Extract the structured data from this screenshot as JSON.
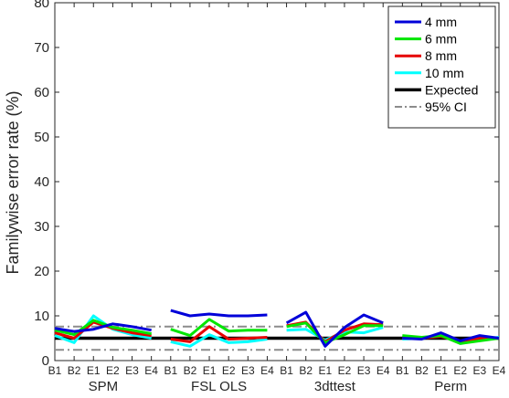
{
  "chart_data": {
    "type": "line",
    "xlabel": "",
    "ylabel": "Familywise error rate (%)",
    "ylim": [
      0,
      80
    ],
    "yticks": [
      0,
      10,
      20,
      30,
      40,
      50,
      60,
      70,
      80
    ],
    "grid": false,
    "legend_position": "top-right",
    "groups": [
      {
        "name": "SPM",
        "categories": [
          "B1",
          "B2",
          "E1",
          "E2",
          "E3",
          "E4"
        ]
      },
      {
        "name": "FSL OLS",
        "categories": [
          "B1",
          "B2",
          "E1",
          "E2",
          "E3",
          "E4"
        ]
      },
      {
        "name": "3dttest",
        "categories": [
          "B1",
          "B2",
          "E1",
          "E2",
          "E3",
          "E4"
        ]
      },
      {
        "name": "Perm",
        "categories": [
          "B1",
          "B2",
          "E1",
          "E2",
          "E3",
          "E4"
        ]
      }
    ],
    "series": [
      {
        "name": "4 mm",
        "color": "#0000d9",
        "style": "solid",
        "groups": [
          [
            7.2,
            6.5,
            7.0,
            8.2,
            7.6,
            6.8
          ],
          [
            11.2,
            10.0,
            10.4,
            10.0,
            10.0,
            10.2
          ],
          [
            8.4,
            10.8,
            3.2,
            7.4,
            10.2,
            8.4
          ],
          [
            5.0,
            4.8,
            6.2,
            4.4,
            5.6,
            5.0
          ]
        ]
      },
      {
        "name": "6 mm",
        "color": "#00e600",
        "style": "solid",
        "groups": [
          [
            6.8,
            5.8,
            9.0,
            7.4,
            6.8,
            6.0
          ],
          [
            7.0,
            5.6,
            9.2,
            6.6,
            6.8,
            6.8
          ],
          [
            7.6,
            8.4,
            4.0,
            5.8,
            7.8,
            7.8
          ],
          [
            5.6,
            5.2,
            5.6,
            3.8,
            4.4,
            5.0
          ]
        ]
      },
      {
        "name": "8 mm",
        "color": "#e60000",
        "style": "solid",
        "groups": [
          [
            6.2,
            5.0,
            8.6,
            7.2,
            6.2,
            5.6
          ],
          [
            4.8,
            4.2,
            7.6,
            4.8,
            5.0,
            5.2
          ],
          [
            7.8,
            8.6,
            4.2,
            6.8,
            8.2,
            8.0
          ],
          [
            5.2,
            5.0,
            5.4,
            4.2,
            5.0,
            5.0
          ]
        ]
      },
      {
        "name": "10 mm",
        "color": "#00ffff",
        "style": "solid",
        "groups": [
          [
            5.6,
            4.0,
            10.0,
            7.0,
            5.8,
            5.0
          ],
          [
            4.2,
            3.2,
            5.8,
            4.0,
            4.2,
            4.8
          ],
          [
            6.8,
            7.0,
            4.6,
            6.4,
            6.2,
            7.4
          ],
          [
            4.8,
            5.0,
            5.6,
            4.0,
            4.8,
            5.2
          ]
        ]
      },
      {
        "name": "Expected",
        "color": "#000000",
        "style": "solid",
        "constant": 5
      },
      {
        "name": "95% CI",
        "color": "#8c8c8c",
        "style": "dashdot",
        "constant_lines": [
          2.4,
          7.6
        ]
      }
    ]
  }
}
